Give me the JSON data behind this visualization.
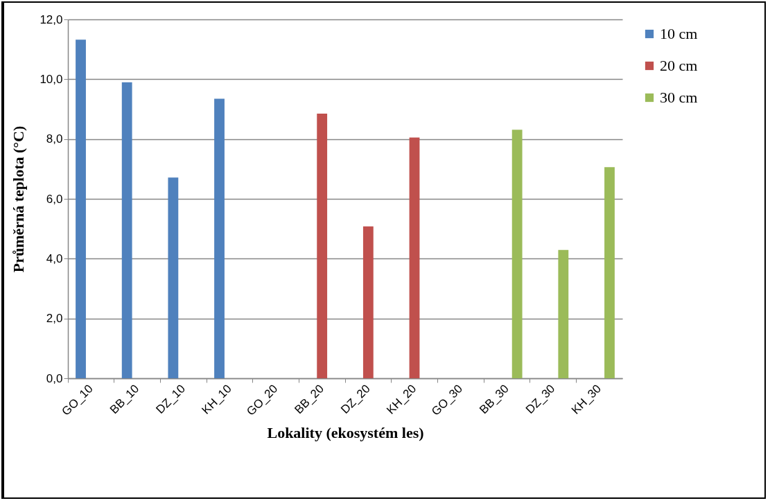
{
  "chart_data": {
    "type": "bar",
    "xlabel": "Lokality (ekosystém les)",
    "ylabel": "Průměrná teplota (°C)",
    "categories": [
      "GO_10",
      "BB_10",
      "DZ_10",
      "KH_10",
      "GO_20",
      "BB_20",
      "DZ_20",
      "KH_20",
      "GO_30",
      "BB_30",
      "DZ_30",
      "KH_30"
    ],
    "series": [
      {
        "name": "10 cm",
        "color": "#4f81bd",
        "values": [
          11.32,
          9.9,
          6.71,
          9.35,
          null,
          null,
          null,
          null,
          null,
          null,
          null,
          null
        ]
      },
      {
        "name": "20 cm",
        "color": "#c0504d",
        "values": [
          null,
          null,
          null,
          null,
          null,
          8.85,
          5.08,
          8.05,
          null,
          null,
          null,
          null
        ]
      },
      {
        "name": "30 cm",
        "color": "#9bbb59",
        "values": [
          null,
          null,
          null,
          null,
          null,
          null,
          null,
          null,
          null,
          8.31,
          4.29,
          7.06
        ]
      }
    ],
    "ylim": [
      0,
      12
    ],
    "yticks": [
      {
        "value": 0,
        "label": "0,0"
      },
      {
        "value": 2,
        "label": "2,0"
      },
      {
        "value": 4,
        "label": "4,0"
      },
      {
        "value": 6,
        "label": "6,0"
      },
      {
        "value": 8,
        "label": "8,0"
      },
      {
        "value": 10,
        "label": "10,0"
      },
      {
        "value": 12,
        "label": "12,0"
      }
    ],
    "grid": "y",
    "legend": "right"
  }
}
